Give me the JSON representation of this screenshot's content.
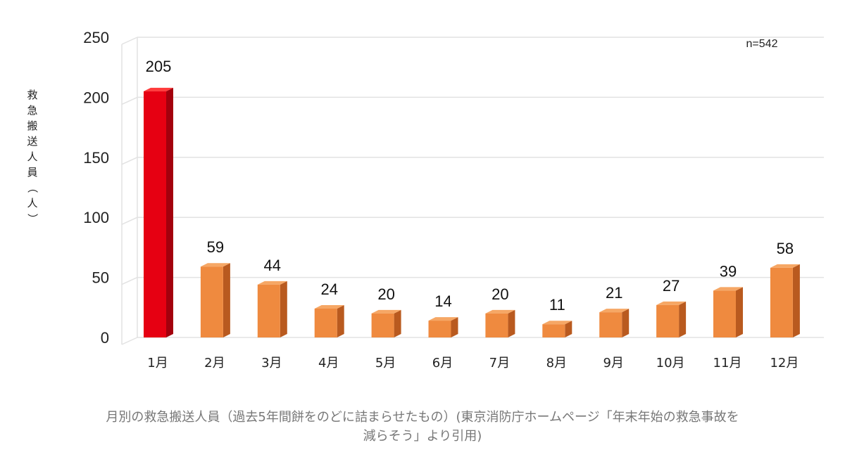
{
  "chart_data": {
    "type": "bar",
    "categories": [
      "1月",
      "2月",
      "3月",
      "4月",
      "5月",
      "6月",
      "7月",
      "8月",
      "9月",
      "10月",
      "11月",
      "12月"
    ],
    "values": [
      205,
      59,
      44,
      24,
      20,
      14,
      20,
      11,
      21,
      27,
      39,
      58
    ],
    "ylabel": "救急搬送人員（人）",
    "ylim": [
      0,
      250
    ],
    "yticks": [
      0,
      50,
      100,
      150,
      200,
      250
    ],
    "annotation": "n=542",
    "grid": true,
    "legend": "none",
    "colors": {
      "highlight_front": "#e60012",
      "highlight_side": "#a3000d",
      "highlight_top": "#ff3b3b",
      "bar_front": "#ef8a3f",
      "bar_side": "#b95a1f",
      "bar_top": "#f6a765",
      "grid": "#e2e2e2"
    }
  },
  "caption": {
    "line1": "月別の救急搬送人員（過去5年間餅をのどに詰まらせたもの）(東京消防庁ホームページ「年末年始の救急事故を",
    "line2": "減らそう」より引用)"
  }
}
